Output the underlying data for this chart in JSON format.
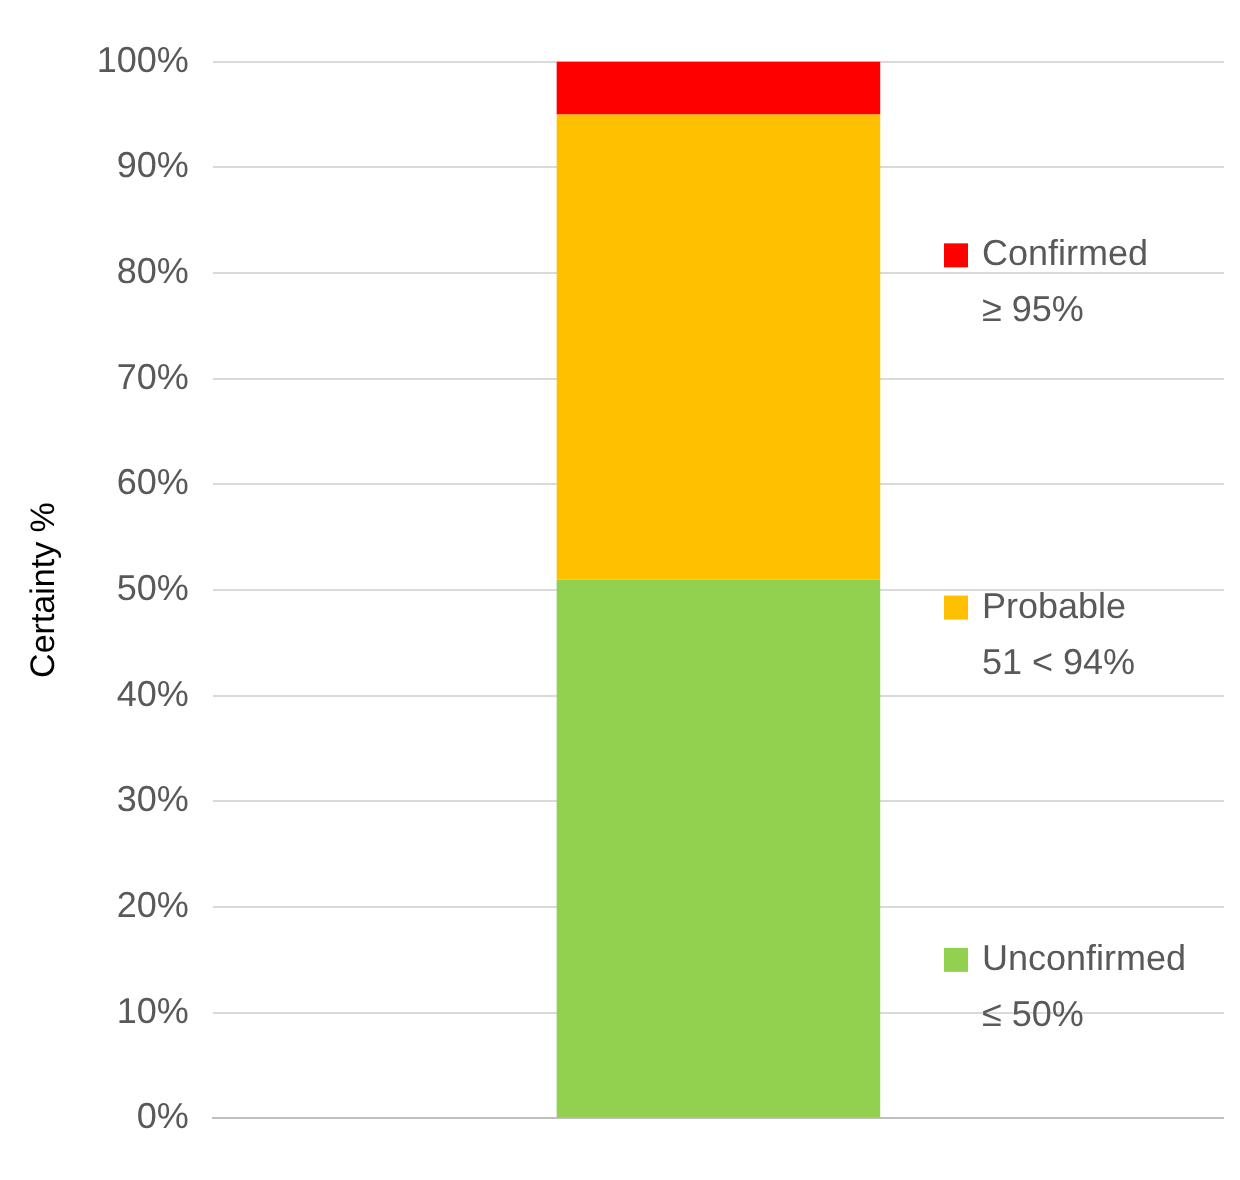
{
  "chart_data": {
    "type": "bar",
    "ylabel": "Certainty %",
    "categories": [
      null
    ],
    "stacked": true,
    "series": [
      {
        "name": "Unconfirmed\n≤ 50%",
        "color": "#92d050",
        "values": [
          51
        ]
      },
      {
        "name": "Probable\n51 < 94%",
        "color": "#ffc000",
        "values": [
          44
        ]
      },
      {
        "name": "Confirmed\n≥ 95%",
        "color": "#ff0000",
        "values": [
          5
        ]
      }
    ],
    "ylim": [
      0,
      100
    ],
    "yticks": [
      {
        "value": 0,
        "label": "0%"
      },
      {
        "value": 10,
        "label": "10%"
      },
      {
        "value": 20,
        "label": "20%"
      },
      {
        "value": 30,
        "label": "30%"
      },
      {
        "value": 40,
        "label": "40%"
      },
      {
        "value": 50,
        "label": "50%"
      },
      {
        "value": 60,
        "label": "60%"
      },
      {
        "value": 70,
        "label": "70%"
      },
      {
        "value": 80,
        "label": "80%"
      },
      {
        "value": 90,
        "label": "90%"
      },
      {
        "value": 100,
        "label": "100%"
      }
    ],
    "grid": "y",
    "legend": "right"
  }
}
